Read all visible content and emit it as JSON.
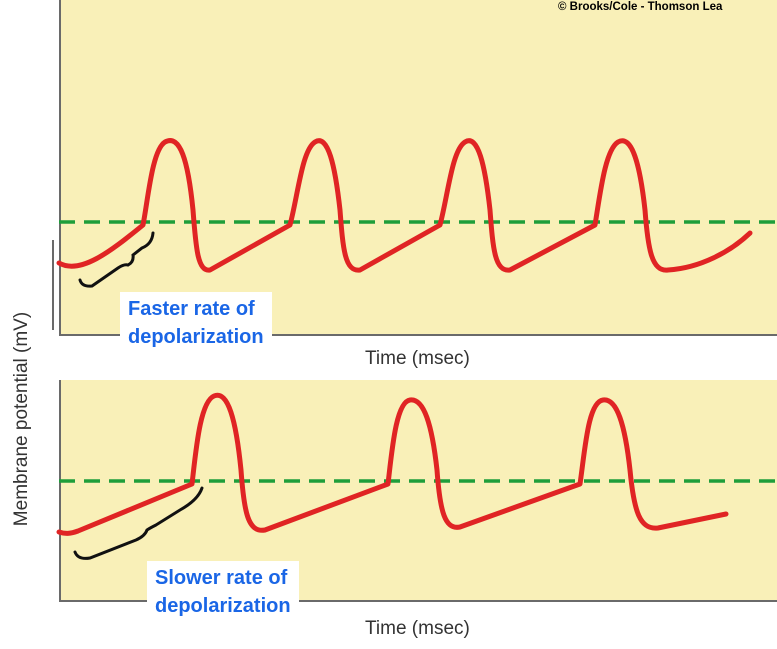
{
  "copyright": "© Brooks/Cole - Thomson Lea",
  "y_axis_label": "Membrane potential (mV)",
  "top_panel": {
    "x_axis_label": "Time (msec)",
    "annotation_line1": "Faster rate of",
    "annotation_line2": "depolarization"
  },
  "bottom_panel": {
    "x_axis_label": "Time (msec)",
    "annotation_line1": "Slower rate of",
    "annotation_line2": "depolarization"
  },
  "colors": {
    "panel_background": "#f9f0b8",
    "trace": "#e02424",
    "threshold_line": "#1e9e3a",
    "annotation_text": "#1a66e6"
  }
}
